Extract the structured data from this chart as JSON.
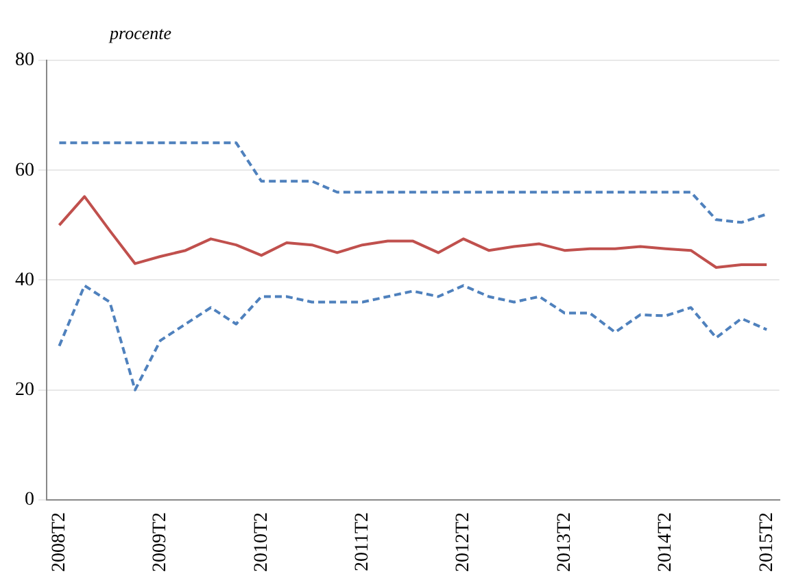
{
  "chart_data": {
    "type": "line",
    "ylabel": "procente",
    "categories": [
      "2008T2",
      null,
      null,
      null,
      "2009T2",
      null,
      null,
      null,
      "2010T2",
      null,
      null,
      null,
      "2011T2",
      null,
      null,
      null,
      "2012T2",
      null,
      null,
      null,
      "2013T2",
      null,
      null,
      null,
      "2014T2",
      null,
      null,
      null,
      "2015T2"
    ],
    "series": [
      {
        "color": "#4f81bd",
        "line_style": "dashed",
        "values": [
          65,
          65,
          65,
          65,
          65,
          65,
          65,
          65,
          58,
          58,
          58,
          56,
          56,
          56,
          56,
          56,
          56,
          56,
          56,
          56,
          56,
          56,
          56,
          56,
          56,
          56,
          51,
          50.5,
          52
        ]
      },
      {
        "color": "#c0504d",
        "line_style": "solid",
        "values": [
          50,
          55.2,
          49,
          43,
          44.3,
          45.4,
          47.5,
          46.4,
          44.5,
          46.8,
          46.4,
          45,
          46.4,
          47.1,
          47.1,
          45,
          47.5,
          45.4,
          46.1,
          46.6,
          45.4,
          45.7,
          45.7,
          46.1,
          45.7,
          45.4,
          42.3,
          42.8,
          42.8
        ]
      },
      {
        "color": "#4f81bd",
        "line_style": "dashed",
        "values": [
          28,
          39,
          36,
          20,
          29,
          32,
          35,
          32,
          37,
          37,
          36,
          36,
          36,
          37,
          38,
          37,
          39,
          37,
          36,
          37,
          34,
          34,
          30.5,
          33.7,
          33.5,
          35,
          29.5,
          33,
          31
        ]
      }
    ],
    "ylim": [
      0,
      80
    ],
    "yticks": [
      0,
      20,
      40,
      60,
      80
    ],
    "grid": "y",
    "legend": false,
    "marker": "none"
  }
}
